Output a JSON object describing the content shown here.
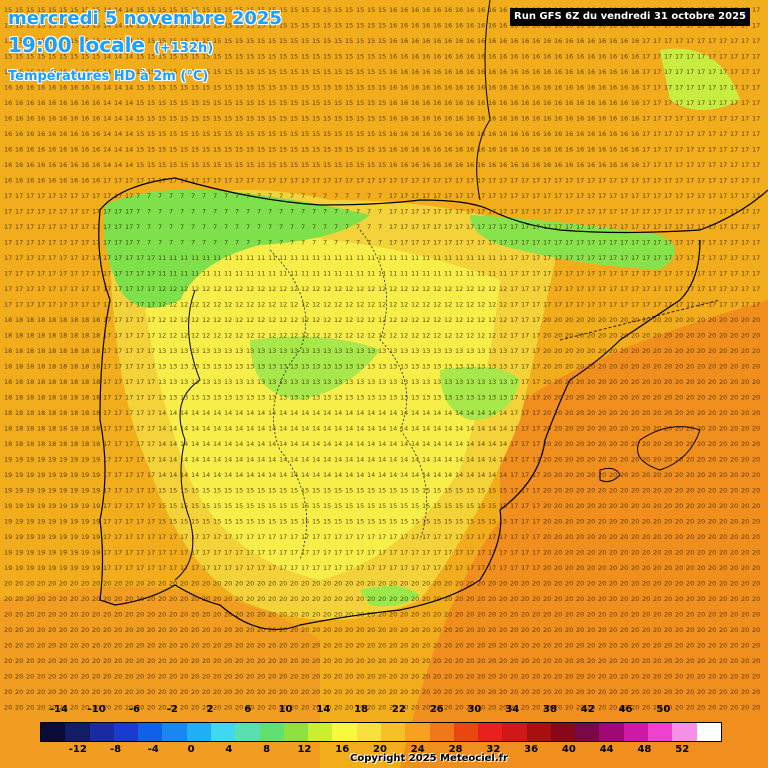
{
  "title": {
    "date": "mercredi 5 novembre 2025",
    "time": "19:00 locale",
    "offset": "(+132h)",
    "variable": "Températures HD à 2m (°C)"
  },
  "run_info": "Run GFS 6Z du vendredi 31 octobre 2025",
  "copyright": "Copyright 2025 Meteociel.fr",
  "legend": {
    "upper_labels": [
      "-14",
      "-10",
      "-6",
      "-2",
      "2",
      "6",
      "10",
      "14",
      "18",
      "22",
      "26",
      "30",
      "34",
      "38",
      "42",
      "46",
      "50"
    ],
    "lower_labels": [
      "-12",
      "-8",
      "-4",
      "0",
      "4",
      "8",
      "12",
      "16",
      "20",
      "24",
      "28",
      "32",
      "36",
      "40",
      "44",
      "48",
      "52"
    ],
    "colors": [
      "#0b0b3a",
      "#131d66",
      "#1a2aa0",
      "#1a3ad0",
      "#1060e8",
      "#1888f0",
      "#20b0f8",
      "#40d8f0",
      "#58e0b0",
      "#60e070",
      "#90e040",
      "#c8f030",
      "#f8f840",
      "#f8e040",
      "#f8c028",
      "#f8a020",
      "#f07818",
      "#e84810",
      "#e82020",
      "#d01818",
      "#a81010",
      "#880818",
      "#780848",
      "#a00878",
      "#d018a8",
      "#f040d0",
      "#f890e8",
      "#ffffff"
    ],
    "upper_positions": [
      -14,
      -10,
      -6,
      -2,
      2,
      6,
      10,
      14,
      18,
      22,
      26,
      30,
      34,
      38,
      42,
      46,
      50
    ],
    "lower_positions": [
      -12,
      -8,
      -4,
      0,
      4,
      8,
      12,
      16,
      20,
      24,
      28,
      32,
      36,
      40,
      44,
      48,
      52
    ]
  },
  "colors": {
    "title_blue": "#1aa0ff",
    "background_orange": "#f2b21a",
    "mountain_green": "#7ee04a",
    "border_line": "#000000"
  }
}
